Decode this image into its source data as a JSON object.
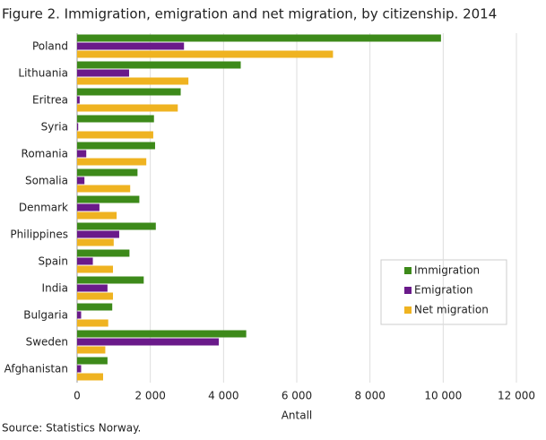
{
  "chart_data": {
    "type": "hbar",
    "title": "Figure 2. Immigration, emigration and net migration, by citizenship. 2014",
    "source": "Source: Statistics Norway.",
    "x_label": "Antall",
    "categories": [
      "Poland",
      "Lithuania",
      "Eritrea",
      "Syria",
      "Romania",
      "Somalia",
      "Denmark",
      "Philippines",
      "Spain",
      "India",
      "Bulgaria",
      "Sweden",
      "Afghanistan"
    ],
    "series": [
      {
        "name": "Immigration",
        "color": "#3d8a1a",
        "values": [
          9940,
          4470,
          2830,
          2100,
          2130,
          1650,
          1700,
          2150,
          1430,
          1820,
          960,
          4620,
          830
        ]
      },
      {
        "name": "Emigration",
        "color": "#6a1a8a",
        "values": [
          2920,
          1420,
          70,
          30,
          250,
          200,
          610,
          1150,
          430,
          830,
          110,
          3870,
          110
        ]
      },
      {
        "name": "Net migration",
        "color": "#efb321",
        "values": [
          6990,
          3040,
          2750,
          2080,
          1890,
          1450,
          1080,
          1000,
          980,
          980,
          850,
          770,
          710
        ]
      }
    ],
    "xlim": [
      0,
      12000
    ],
    "xticks": [
      0,
      {
        "value": 2000,
        "label": "2 000"
      },
      {
        "value": 4000,
        "label": "4 000"
      },
      {
        "value": 6000,
        "label": "6 000"
      },
      {
        "value": 8000,
        "label": "8 000"
      },
      {
        "value": 10000,
        "label": "10 000"
      },
      {
        "value": 12000,
        "label": "12 000"
      }
    ],
    "grid": true
  }
}
